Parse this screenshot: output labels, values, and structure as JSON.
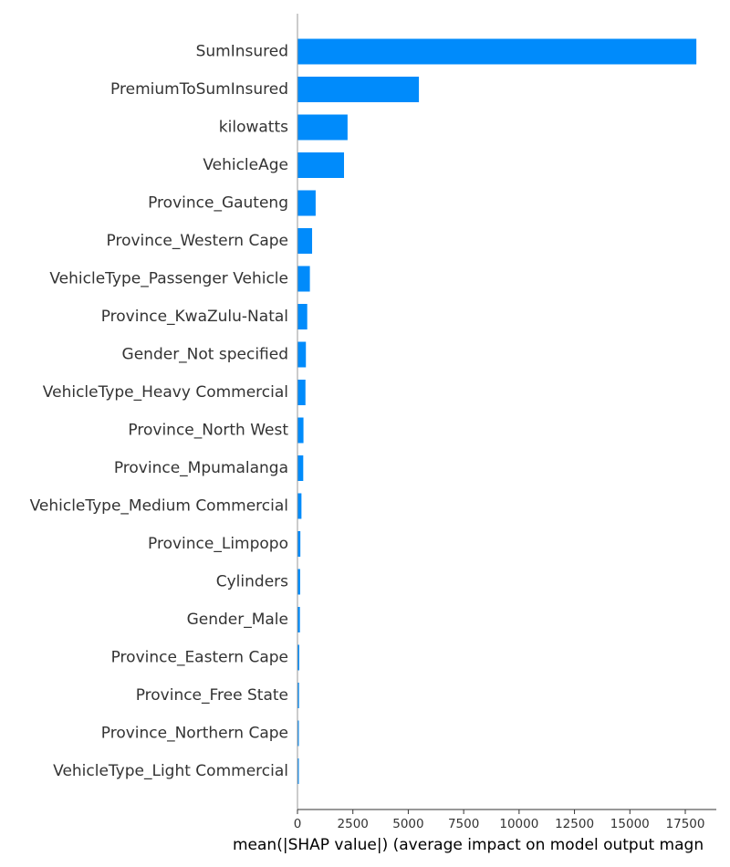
{
  "chart_data": {
    "type": "bar",
    "orientation": "horizontal",
    "title": "",
    "xlabel": "mean(|SHAP value|) (average impact on model output magn",
    "ylabel": "",
    "bar_color": "#008bfb",
    "categories": [
      "SumInsured",
      "PremiumToSumInsured",
      "kilowatts",
      "VehicleAge",
      "Province_Gauteng",
      "Province_Western Cape",
      "VehicleType_Passenger Vehicle",
      "Province_KwaZulu-Natal",
      "Gender_Not specified",
      "VehicleType_Heavy Commercial",
      "Province_North West",
      "Province_Mpumalanga",
      "VehicleType_Medium Commercial",
      "Province_Limpopo",
      "Cylinders",
      "Gender_Male",
      "Province_Eastern Cape",
      "Province_Free State",
      "Province_Northern Cape",
      "VehicleType_Light Commercial"
    ],
    "values": [
      18000,
      5480,
      2260,
      2100,
      820,
      660,
      560,
      440,
      380,
      360,
      270,
      260,
      180,
      130,
      120,
      110,
      80,
      70,
      10,
      5
    ],
    "xlim": [
      0,
      18900
    ],
    "xticks": [
      0,
      2500,
      5000,
      7500,
      10000,
      12500,
      15000,
      17500
    ],
    "xtick_labels": [
      "0",
      "2500",
      "5000",
      "7500",
      "10000",
      "12500",
      "15000",
      "17500"
    ],
    "grid": false,
    "legend": "none"
  }
}
